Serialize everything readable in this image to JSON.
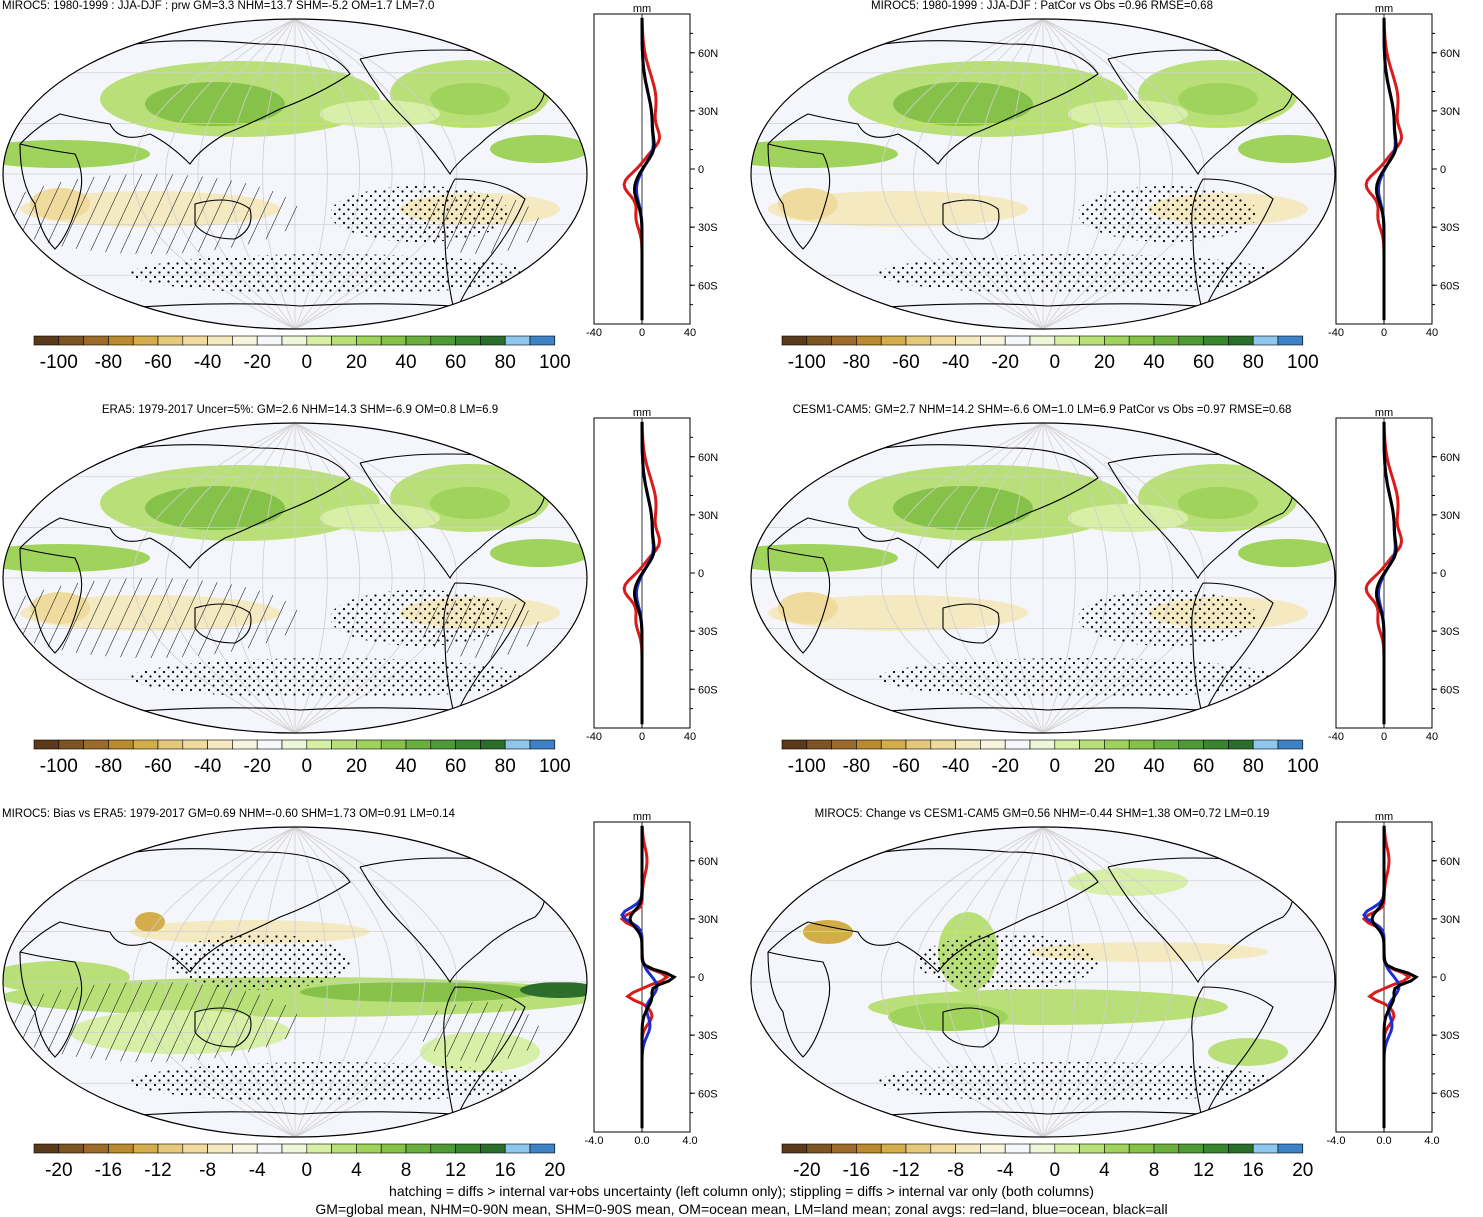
{
  "panels": [
    {
      "id": "p1",
      "title": "MIROC5: 1980-1999 : JJA-DJF : prw GM=3.3 NHM=13.7 SHM=-5.2 OM=1.7 LM=7.0",
      "title_align": "left",
      "zonal_unit": "mm",
      "zonal_xticks": [
        "-40",
        "0",
        "40"
      ],
      "zonal_yticks": [
        "60N",
        "30N",
        "0",
        "30S",
        "60S"
      ],
      "colorbar_labels": [
        "-100",
        "-80",
        "-60",
        "-40",
        "-20",
        "0",
        "20",
        "40",
        "60",
        "80",
        "100"
      ],
      "hatching": true
    },
    {
      "id": "p2",
      "title": "MIROC5: 1980-1999 : JJA-DJF : PatCor vs Obs =0.96 RMSE=0.68",
      "title_align": "center",
      "zonal_unit": "mm",
      "zonal_xticks": [
        "-40",
        "0",
        "40"
      ],
      "zonal_yticks": [
        "60N",
        "30N",
        "0",
        "30S",
        "60S"
      ],
      "colorbar_labels": [
        "-100",
        "-80",
        "-60",
        "-40",
        "-20",
        "0",
        "20",
        "40",
        "60",
        "80",
        "100"
      ],
      "hatching": false
    },
    {
      "id": "p3",
      "title": "ERA5: 1979-2017 Uncer=5%: GM=2.6 NHM=14.3 SHM=-6.9 OM=0.8 LM=6.9",
      "title_align": "center",
      "zonal_unit": "mm",
      "zonal_xticks": [
        "-40",
        "0",
        "40"
      ],
      "zonal_yticks": [
        "60N",
        "30N",
        "0",
        "30S",
        "60S"
      ],
      "colorbar_labels": [
        "-100",
        "-80",
        "-60",
        "-40",
        "-20",
        "0",
        "20",
        "40",
        "60",
        "80",
        "100"
      ],
      "hatching": true
    },
    {
      "id": "p4",
      "title": "CESM1-CAM5: GM=2.7 NHM=14.2 SHM=-6.6 OM=1.0 LM=6.9 PatCor vs Obs =0.97 RMSE=0.68",
      "title_align": "center",
      "zonal_unit": "mm",
      "zonal_xticks": [
        "-40",
        "0",
        "40"
      ],
      "zonal_yticks": [
        "60N",
        "30N",
        "0",
        "30S",
        "60S"
      ],
      "colorbar_labels": [
        "-100",
        "-80",
        "-60",
        "-40",
        "-20",
        "0",
        "20",
        "40",
        "60",
        "80",
        "100"
      ],
      "hatching": false
    },
    {
      "id": "p5",
      "title": "MIROC5: Bias vs ERA5: 1979-2017 GM=0.69 NHM=-0.60 SHM=1.73 OM=0.91 LM=0.14",
      "title_align": "left",
      "zonal_unit": "mm",
      "zonal_xticks": [
        "-4.0",
        "0.0",
        "4.0"
      ],
      "zonal_yticks": [
        "60N",
        "30N",
        "0",
        "30S",
        "60S"
      ],
      "colorbar_labels": [
        "-20",
        "-16",
        "-12",
        "-8",
        "-4",
        "0",
        "4",
        "8",
        "12",
        "16",
        "20"
      ],
      "hatching": true
    },
    {
      "id": "p6",
      "title": "MIROC5: Change vs CESM1-CAM5 GM=0.56 NHM=-0.44 SHM=1.38 OM=0.72 LM=0.19",
      "title_align": "center",
      "zonal_unit": "mm",
      "zonal_xticks": [
        "-4.0",
        "0.0",
        "4.0"
      ],
      "zonal_yticks": [
        "60N",
        "30N",
        "0",
        "30S",
        "60S"
      ],
      "colorbar_labels": [
        "-20",
        "-16",
        "-12",
        "-8",
        "-4",
        "0",
        "4",
        "8",
        "12",
        "16",
        "20"
      ],
      "hatching": false
    }
  ],
  "colors": {
    "palette": [
      "#5a3a1a",
      "#7d5423",
      "#9c6b2b",
      "#b98a2f",
      "#d4ad4b",
      "#e4c97a",
      "#efdb9e",
      "#f4e9c0",
      "#f8f3dc",
      "#f6f7fb",
      "#ffffff",
      "#eef7d8",
      "#d7efa6",
      "#b9e078",
      "#9fd35b",
      "#86c249",
      "#6aae3e",
      "#4f9a37",
      "#3a8530",
      "#2b6e2b",
      "#8fc6ee",
      "#3d82c4"
    ],
    "land_line": "#d81b1b",
    "ocean_line": "#1c2fd1",
    "all_line": "#000000",
    "background_ocean": "#f5f6fb"
  },
  "footer": {
    "line1": "hatching = diffs > internal var+obs uncertainty (left column only); stippling = diffs > internal var only (both columns)",
    "line2": "GM=global mean, NHM=0-90N mean, SHM=0-90S mean, OM=ocean mean, LM=land mean; zonal avgs: red=land, blue=ocean, black=all"
  }
}
